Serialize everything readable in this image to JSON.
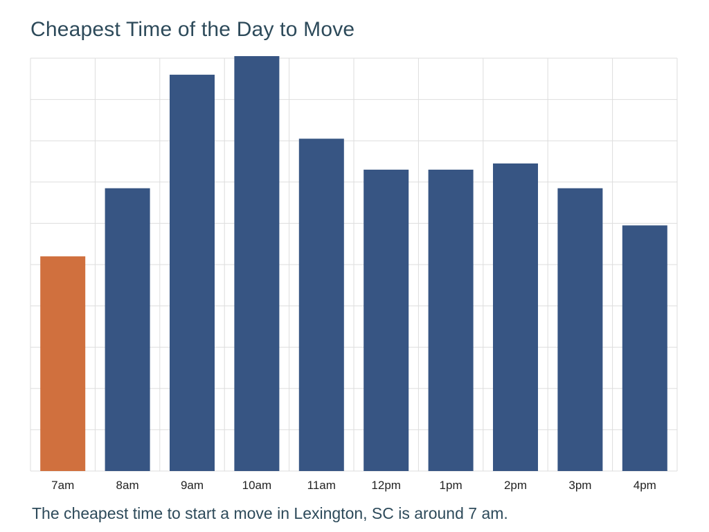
{
  "chart_data": {
    "type": "bar",
    "title": "Cheapest Time of the Day to Move",
    "caption": "The cheapest time to start a move in Lexington, SC is around 7 am.",
    "xlabel": "",
    "ylabel": "",
    "categories": [
      "7am",
      "8am",
      "9am",
      "10am",
      "11am",
      "12pm",
      "1pm",
      "2pm",
      "3pm",
      "4pm"
    ],
    "values": [
      52,
      68.5,
      96,
      100.5,
      80.5,
      73,
      73,
      74.5,
      68.5,
      59.5
    ],
    "ylim": [
      0,
      100
    ],
    "grid": true,
    "legend": "none",
    "colors": {
      "highlight": "#d0703e",
      "bar": "#375583",
      "grid": "#dddddd",
      "text": "#2d4a5a"
    },
    "highlight_index": 0
  }
}
